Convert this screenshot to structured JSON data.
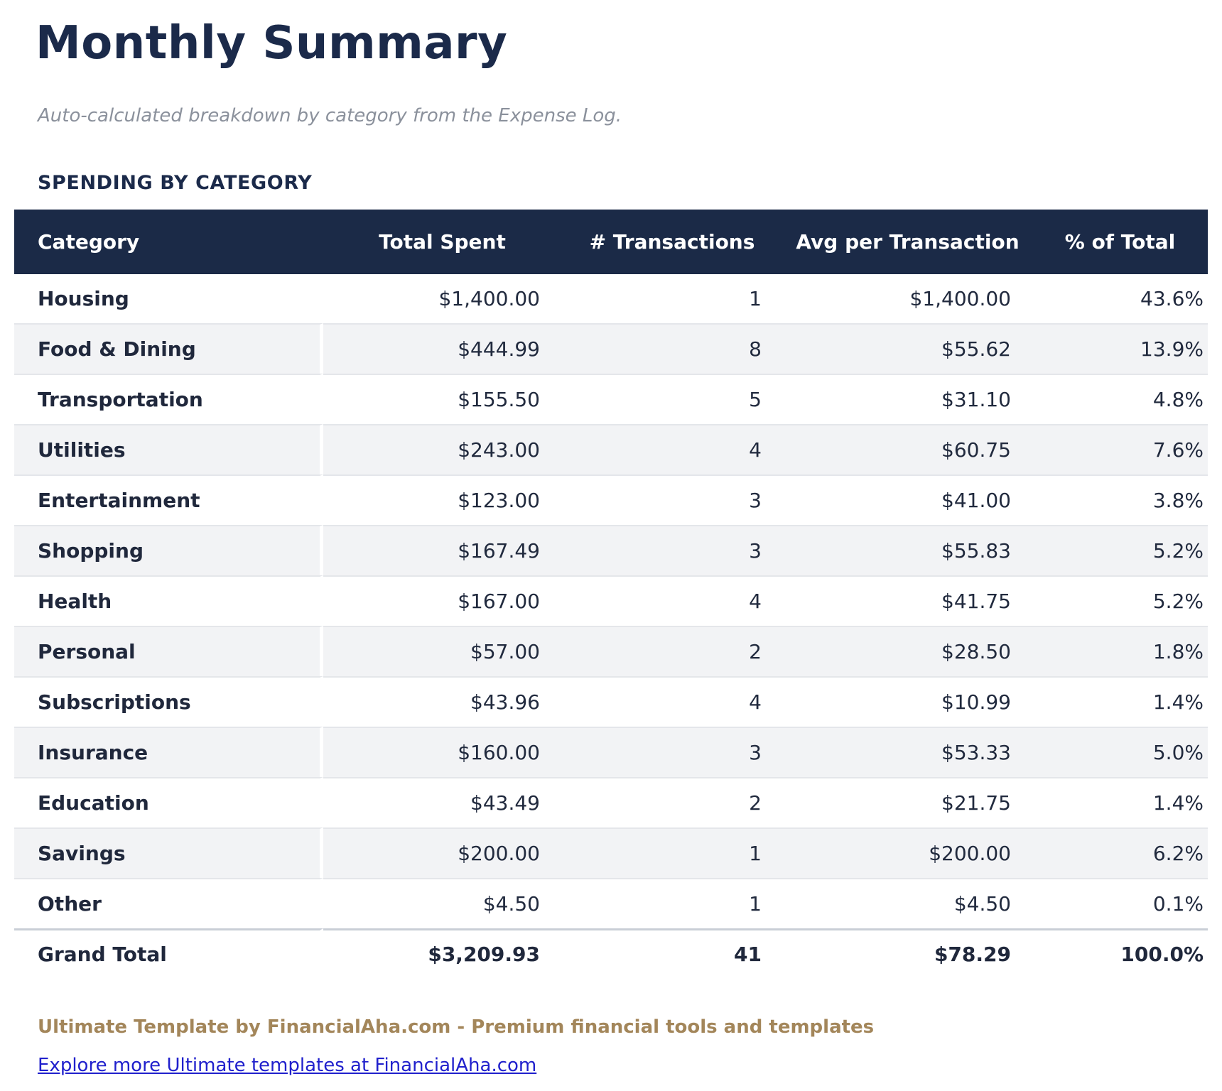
{
  "page": {
    "title": "Monthly Summary",
    "subtitle": "Auto-calculated breakdown by category from the Expense Log.",
    "section_heading": "SPENDING BY CATEGORY"
  },
  "table": {
    "columns": [
      "Category",
      "Total Spent",
      "# Transactions",
      "Avg per Transaction",
      "% of Total"
    ],
    "rows": [
      {
        "category": "Housing",
        "total_spent": "$1,400.00",
        "transactions": "1",
        "avg_per_transaction": "$1,400.00",
        "pct_of_total": "43.6%"
      },
      {
        "category": "Food & Dining",
        "total_spent": "$444.99",
        "transactions": "8",
        "avg_per_transaction": "$55.62",
        "pct_of_total": "13.9%"
      },
      {
        "category": "Transportation",
        "total_spent": "$155.50",
        "transactions": "5",
        "avg_per_transaction": "$31.10",
        "pct_of_total": "4.8%"
      },
      {
        "category": "Utilities",
        "total_spent": "$243.00",
        "transactions": "4",
        "avg_per_transaction": "$60.75",
        "pct_of_total": "7.6%"
      },
      {
        "category": "Entertainment",
        "total_spent": "$123.00",
        "transactions": "3",
        "avg_per_transaction": "$41.00",
        "pct_of_total": "3.8%"
      },
      {
        "category": "Shopping",
        "total_spent": "$167.49",
        "transactions": "3",
        "avg_per_transaction": "$55.83",
        "pct_of_total": "5.2%"
      },
      {
        "category": "Health",
        "total_spent": "$167.00",
        "transactions": "4",
        "avg_per_transaction": "$41.75",
        "pct_of_total": "5.2%"
      },
      {
        "category": "Personal",
        "total_spent": "$57.00",
        "transactions": "2",
        "avg_per_transaction": "$28.50",
        "pct_of_total": "1.8%"
      },
      {
        "category": "Subscriptions",
        "total_spent": "$43.96",
        "transactions": "4",
        "avg_per_transaction": "$10.99",
        "pct_of_total": "1.4%"
      },
      {
        "category": "Insurance",
        "total_spent": "$160.00",
        "transactions": "3",
        "avg_per_transaction": "$53.33",
        "pct_of_total": "5.0%"
      },
      {
        "category": "Education",
        "total_spent": "$43.49",
        "transactions": "2",
        "avg_per_transaction": "$21.75",
        "pct_of_total": "1.4%"
      },
      {
        "category": "Savings",
        "total_spent": "$200.00",
        "transactions": "1",
        "avg_per_transaction": "$200.00",
        "pct_of_total": "6.2%"
      },
      {
        "category": "Other",
        "total_spent": "$4.50",
        "transactions": "1",
        "avg_per_transaction": "$4.50",
        "pct_of_total": "0.1%"
      }
    ],
    "grand_total": {
      "category": "Grand Total",
      "total_spent": "$3,209.93",
      "transactions": "41",
      "avg_per_transaction": "$78.29",
      "pct_of_total": "100.0%"
    }
  },
  "footer": {
    "branding": "Ultimate Template by FinancialAha.com - Premium financial tools and templates",
    "link_text": "Explore more Ultimate templates at FinancialAha.com"
  },
  "colors": {
    "header_bar": "#1b2a47",
    "heading_text": "#1b2a4a",
    "row_stripe": "#f2f3f5",
    "row_border": "#e4e6ea",
    "grand_total_border": "#c9ced6",
    "subtitle_gray": "#8b919c",
    "branding_gold": "#a3865a",
    "link_blue": "#2020cc"
  }
}
